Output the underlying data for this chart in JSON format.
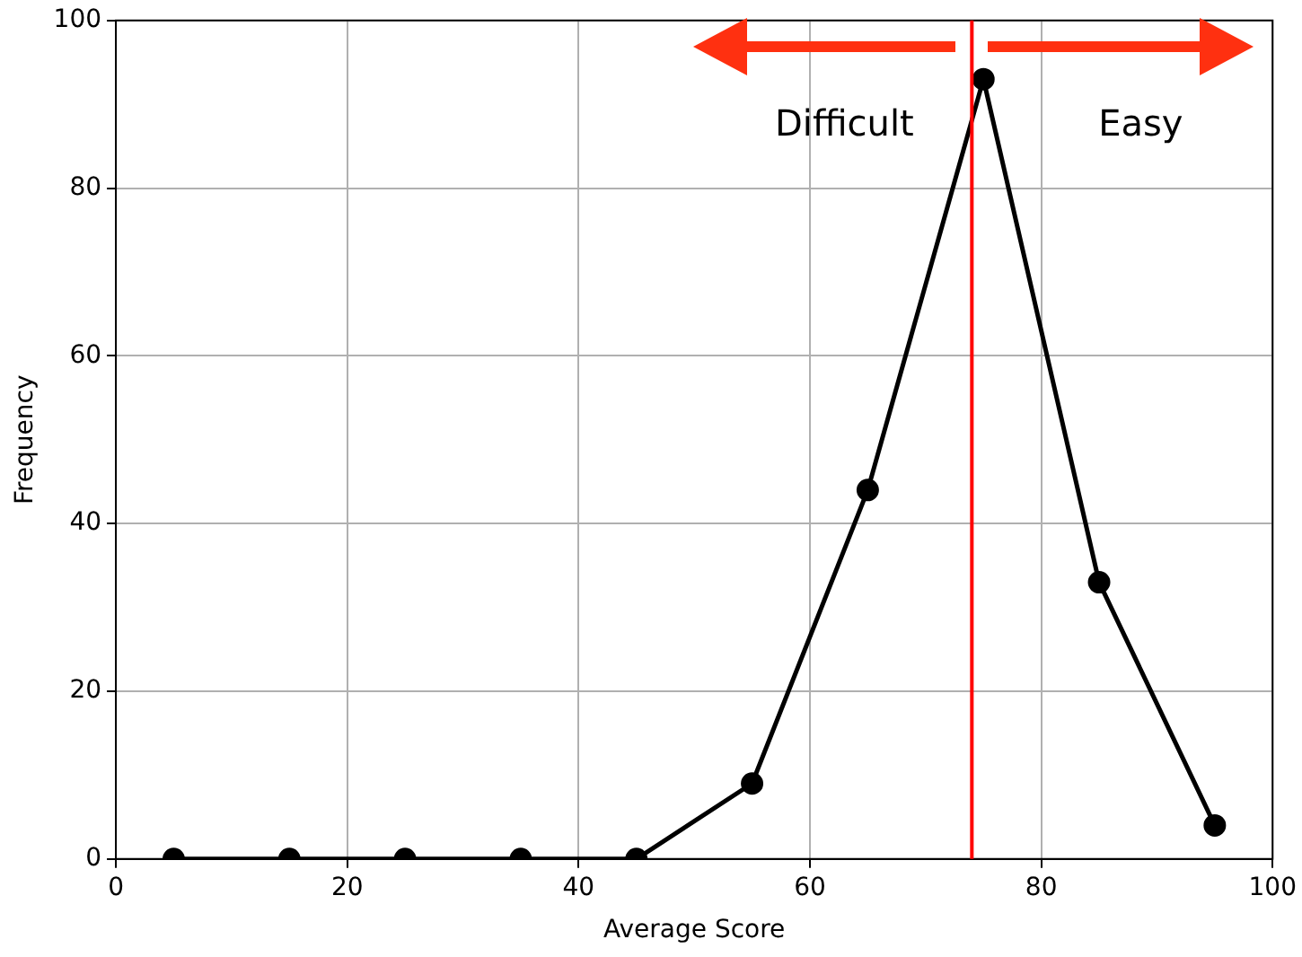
{
  "chart_data": {
    "type": "line",
    "xlabel": "Average Score",
    "ylabel": "Frequency",
    "x": [
      5,
      15,
      25,
      35,
      45,
      55,
      65,
      75,
      85,
      95
    ],
    "series": [
      {
        "color": "#000000",
        "values": [
          0,
          0,
          0,
          0,
          0,
          9,
          44,
          93,
          33,
          4
        ]
      }
    ],
    "xlim": [
      0,
      100
    ],
    "xticks": [
      0,
      20,
      40,
      60,
      80,
      100
    ],
    "ylim": [
      0,
      100
    ],
    "yticks": [
      0,
      20,
      40,
      60,
      80,
      100
    ],
    "grid": true,
    "marker": "circle",
    "line_style": "solid",
    "legend": false,
    "ref_lines": [
      {
        "axis": "x",
        "value": 74,
        "color": "#ff0000"
      }
    ],
    "annotations": [
      "Difficult",
      "Easy"
    ]
  }
}
